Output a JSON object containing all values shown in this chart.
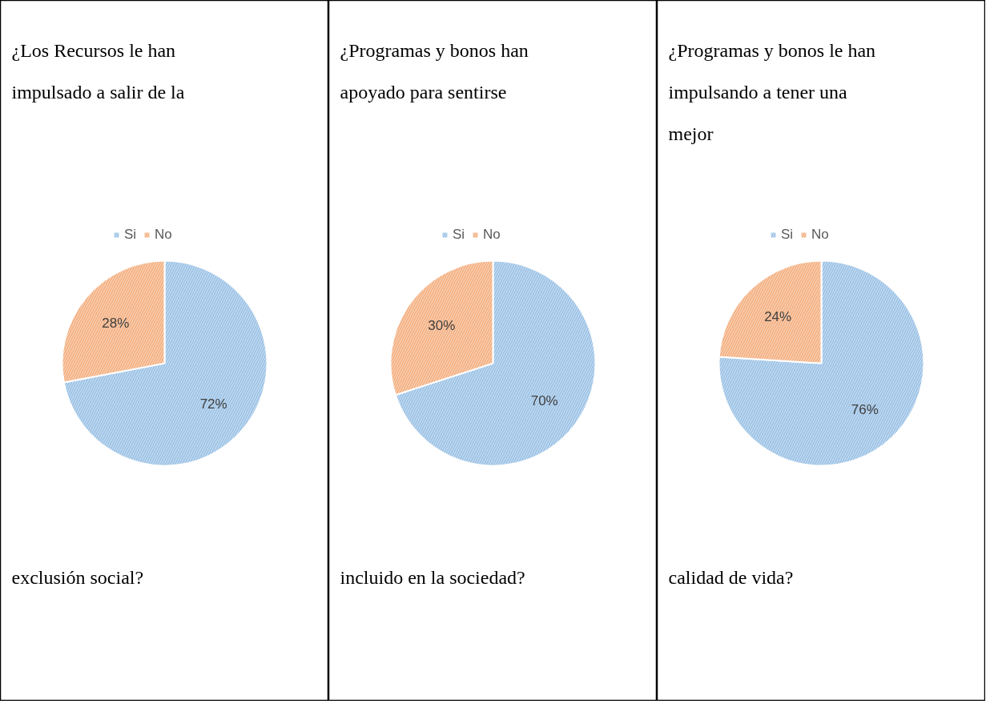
{
  "chart_data": [
    {
      "type": "pie",
      "title": "¿Los Recursos le han impulsado a salir de la",
      "annotations": [
        "exclusión social?"
      ],
      "categories": [
        "Si",
        "No"
      ],
      "values": [
        72,
        28
      ],
      "value_labels": [
        "72%",
        "28%"
      ],
      "colors": [
        "#9dc3e6",
        "#f4b183"
      ],
      "legend": "top"
    },
    {
      "type": "pie",
      "title": "¿Programas y bonos han apoyado para sentirse",
      "annotations": [
        "incluido en la sociedad?"
      ],
      "categories": [
        "Si",
        "No"
      ],
      "values": [
        70,
        30
      ],
      "value_labels": [
        "70%",
        "30%"
      ],
      "colors": [
        "#9dc3e6",
        "#f4b183"
      ],
      "legend": "top"
    },
    {
      "type": "pie",
      "title": "¿Programas y bonos le han impulsando a tener una mejor",
      "annotations": [
        "calidad de vida?"
      ],
      "categories": [
        "Si",
        "No"
      ],
      "values": [
        76,
        24
      ],
      "value_labels": [
        "76%",
        "24%"
      ],
      "colors": [
        "#9dc3e6",
        "#f4b183"
      ],
      "legend": "top"
    }
  ]
}
